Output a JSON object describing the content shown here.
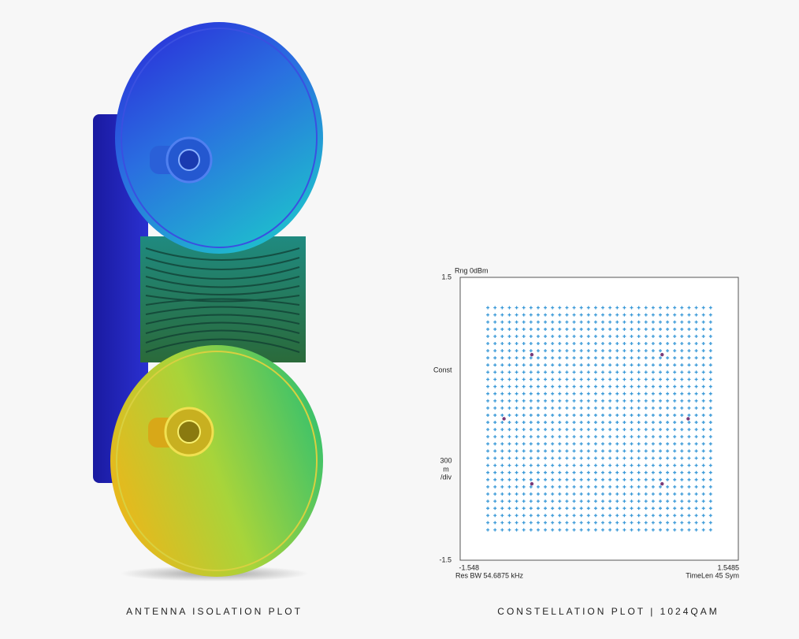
{
  "captions": {
    "left": "ANTENNA ISOLATION PLOT",
    "right": "CONSTELLATION PLOT | 1024QAM"
  },
  "chart_data": {
    "type": "scatter",
    "range_label": "Rng 0dBm",
    "trace_label": "Const",
    "scale_label": [
      "300",
      "m",
      "/div"
    ],
    "footer_left": "Res BW 54.6875 kHz",
    "footer_right": "TimeLen 45 Sym",
    "xlim": [
      -1.548,
      1.5485
    ],
    "ylim": [
      -1.5,
      1.5
    ],
    "xticks": [
      -1.548,
      1.5485
    ],
    "yticks": [
      1.5,
      -1.5
    ],
    "x_levels": [
      -1.24,
      -1.16,
      -1.08,
      -1.0,
      -0.92,
      -0.84,
      -0.76,
      -0.68,
      -0.6,
      -0.52,
      -0.44,
      -0.36,
      -0.28,
      -0.2,
      -0.12,
      -0.04,
      0.04,
      0.12,
      0.2,
      0.28,
      0.36,
      0.44,
      0.52,
      0.6,
      0.68,
      0.76,
      0.84,
      0.92,
      1.0,
      1.08,
      1.16,
      1.24
    ],
    "y_levels": [
      -1.178,
      -1.102,
      -1.026,
      -0.95,
      -0.874,
      -0.798,
      -0.722,
      -0.646,
      -0.57,
      -0.494,
      -0.418,
      -0.342,
      -0.266,
      -0.19,
      -0.114,
      -0.038,
      0.038,
      0.114,
      0.19,
      0.266,
      0.342,
      0.418,
      0.494,
      0.57,
      0.646,
      0.722,
      0.798,
      0.874,
      0.95,
      1.026,
      1.102,
      1.178
    ],
    "color": "#3b9ad8",
    "highlights": {
      "x": [
        -0.75,
        0.7,
        -1.06,
        0.99,
        -0.75,
        0.7
      ],
      "y": [
        0.68,
        0.68,
        0,
        0,
        -0.69,
        -0.69
      ],
      "color": "#7a3a78"
    }
  }
}
